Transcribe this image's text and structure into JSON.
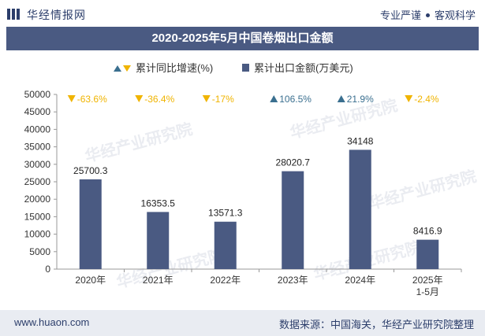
{
  "header": {
    "brand": "华经情报网",
    "tagline_left": "专业严谨",
    "tagline_right": "客观科学"
  },
  "title": "2020-2025年5月中国卷烟出口金额",
  "legend": {
    "growth": "累计同比增速(%)",
    "amount": "累计出口金额(万美元)"
  },
  "footer": {
    "url": "www.huaon.com",
    "source": "数据来源：中国海关，华经产业研究院整理"
  },
  "watermark": "华经产业研究院",
  "colors": {
    "bar": "#4a5a82",
    "up": "#3a6f8f",
    "down": "#f0b400",
    "title_bg": "#4a5a82"
  },
  "chart_data": {
    "type": "bar",
    "categories": [
      "2020年",
      "2021年",
      "2022年",
      "2023年",
      "2024年",
      "2025年\n1-5月"
    ],
    "series": [
      {
        "name": "累计出口金额(万美元)",
        "values": [
          25700.3,
          16353.5,
          13571.3,
          28020.7,
          34148,
          8416.9
        ]
      }
    ],
    "value_labels": [
      "25700.3",
      "16353.5",
      "13571.3",
      "28020.7",
      "34148",
      "8416.9"
    ],
    "growth": {
      "name": "累计同比增速(%)",
      "values": [
        -63.6,
        -36.4,
        -17,
        106.5,
        21.9,
        -2.4
      ],
      "labels": [
        "-63.6%",
        "-36.4%",
        "-17%",
        "106.5%",
        "21.9%",
        "-2.4%"
      ]
    },
    "ylim": [
      0,
      50000
    ],
    "yticks": [
      0,
      5000,
      10000,
      15000,
      20000,
      25000,
      30000,
      35000,
      40000,
      45000,
      50000
    ],
    "grid": false,
    "legend_position": "top"
  }
}
